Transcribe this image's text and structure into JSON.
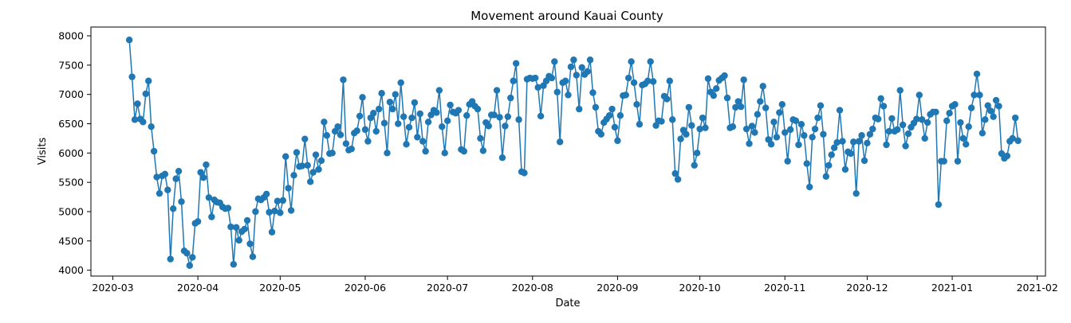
{
  "chart_data": {
    "type": "line",
    "title": "Movement around Kauai County",
    "xlabel": "Date",
    "ylabel": "Visits",
    "x_axis_type": "date",
    "xlim": [
      "2020-02-22",
      "2021-02-04"
    ],
    "ylim": [
      3900,
      8150
    ],
    "grid": false,
    "legend": "none",
    "markers": true,
    "color": "#1f77b4",
    "x_ticks": [
      "2020-03",
      "2020-04",
      "2020-05",
      "2020-06",
      "2020-07",
      "2020-08",
      "2020-09",
      "2020-10",
      "2020-11",
      "2020-12",
      "2021-01",
      "2021-02"
    ],
    "y_ticks": [
      4000,
      4500,
      5000,
      5500,
      6000,
      6500,
      7000,
      7500,
      8000
    ],
    "series": [
      {
        "start_date": "2020-03-07",
        "step_days": 1,
        "values": [
          7930,
          7300,
          6570,
          6840,
          6580,
          6530,
          7010,
          7230,
          6450,
          6030,
          5590,
          5310,
          5610,
          5640,
          5370,
          4190,
          5050,
          5560,
          5690,
          5170,
          4330,
          4290,
          4080,
          4220,
          4800,
          4830,
          5670,
          5580,
          5800,
          5240,
          4910,
          5200,
          5160,
          5150,
          5080,
          5050,
          5060,
          4740,
          4100,
          4730,
          4510,
          4660,
          4700,
          4850,
          4450,
          4230,
          5000,
          5220,
          5200,
          5240,
          5300,
          4990,
          4650,
          5010,
          5180,
          4980,
          5190,
          5940,
          5400,
          5020,
          5620,
          6010,
          5770,
          5780,
          6240,
          5790,
          5510,
          5670,
          5970,
          5720,
          5870,
          6530,
          6300,
          5990,
          6000,
          6370,
          6450,
          6310,
          7250,
          6160,
          6050,
          6070,
          6340,
          6380,
          6630,
          6950,
          6400,
          6200,
          6600,
          6680,
          6370,
          6750,
          7020,
          6510,
          6000,
          6870,
          6750,
          7000,
          6500,
          7200,
          6620,
          6150,
          6440,
          6600,
          6860,
          6270,
          6670,
          6200,
          6030,
          6530,
          6650,
          6730,
          6690,
          7070,
          6450,
          6000,
          6550,
          6820,
          6700,
          6680,
          6730,
          6060,
          6030,
          6640,
          6830,
          6880,
          6800,
          6750,
          6250,
          6040,
          6520,
          6460,
          6650,
          6650,
          7070,
          6610,
          5920,
          6460,
          6620,
          6940,
          7230,
          7530,
          6570,
          5680,
          5660,
          7260,
          7280,
          7270,
          7280,
          7120,
          6630,
          7150,
          7230,
          7310,
          7280,
          7560,
          7040,
          6190,
          7200,
          7230,
          6990,
          7470,
          7590,
          7330,
          6750,
          7460,
          7340,
          7390,
          7590,
          7030,
          6780,
          6370,
          6320,
          6520,
          6580,
          6640,
          6750,
          6440,
          6210,
          6640,
          6980,
          6990,
          7280,
          7560,
          7200,
          6830,
          6490,
          7160,
          7180,
          7230,
          7560,
          7220,
          6470,
          6550,
          6540,
          6970,
          6920,
          7230,
          6570,
          5650,
          5550,
          6240,
          6390,
          6320,
          6780,
          6470,
          5790,
          6000,
          6410,
          6600,
          6430,
          7270,
          7040,
          6980,
          7100,
          7240,
          7280,
          7320,
          6940,
          6430,
          6450,
          6780,
          6880,
          6790,
          7250,
          6410,
          6160,
          6460,
          6350,
          6660,
          6880,
          7140,
          6770,
          6230,
          6150,
          6530,
          6270,
          6690,
          6830,
          6350,
          5860,
          6400,
          6570,
          6550,
          6140,
          6490,
          6300,
          5820,
          5420,
          6270,
          6410,
          6600,
          6810,
          6320,
          5600,
          5790,
          5970,
          6090,
          6180,
          6730,
          6200,
          5720,
          6020,
          5990,
          6190,
          5310,
          6200,
          6300,
          5870,
          6170,
          6320,
          6410,
          6600,
          6580,
          6930,
          6800,
          6140,
          6370,
          6590,
          6370,
          6400,
          7070,
          6480,
          6120,
          6330,
          6440,
          6510,
          6580,
          6990,
          6570,
          6250,
          6520,
          6660,
          6700,
          6700,
          5120,
          5860,
          5860,
          6550,
          6680,
          6800,
          6830,
          5860,
          6520,
          6250,
          6150,
          6450,
          6770,
          6990,
          7350,
          6990,
          6340,
          6570,
          6810,
          6720,
          6620,
          6900,
          6800,
          5990,
          5910,
          5950,
          6200,
          6250,
          6600,
          6210
        ]
      }
    ]
  }
}
